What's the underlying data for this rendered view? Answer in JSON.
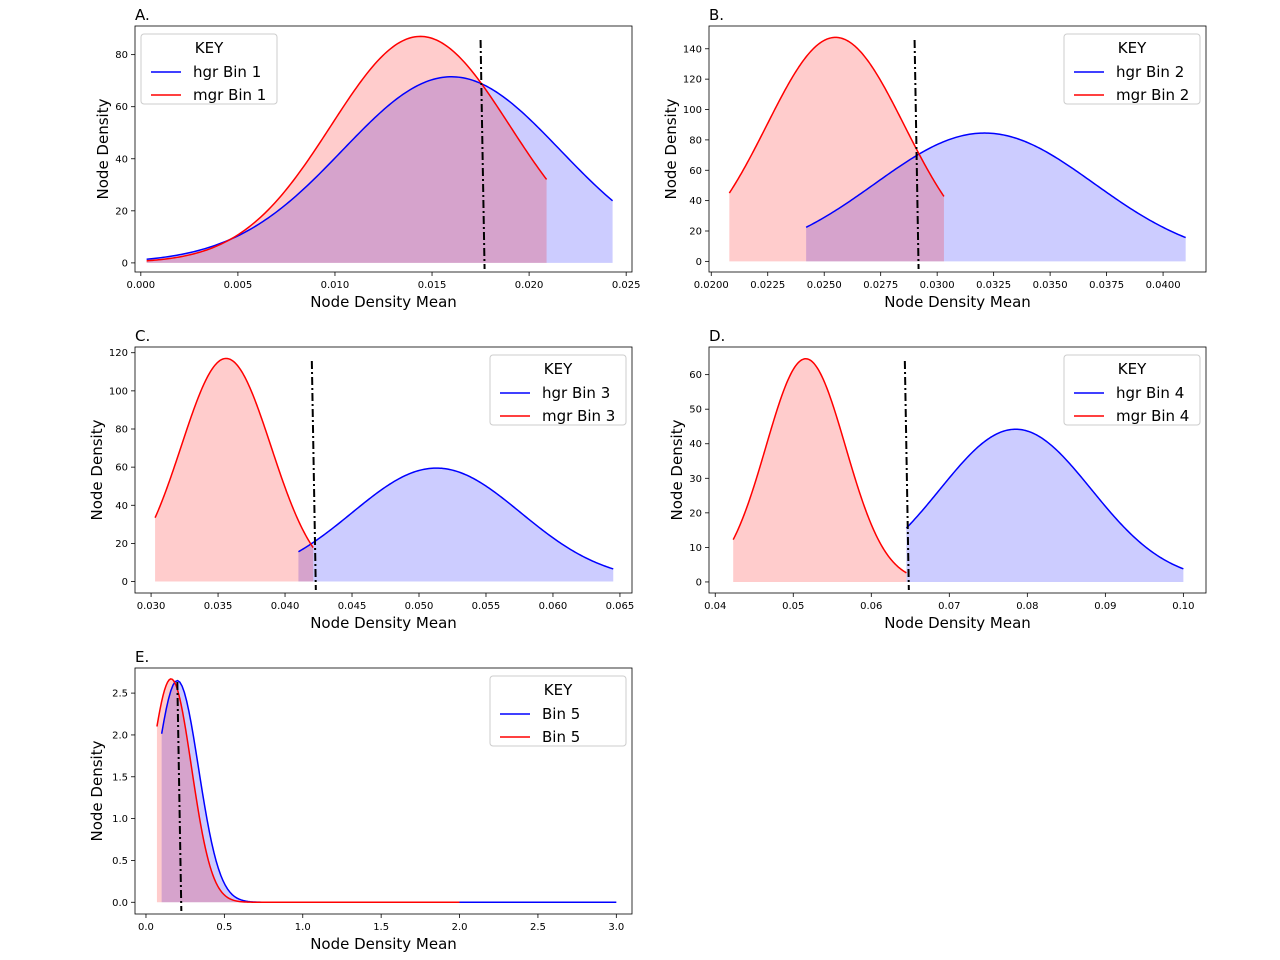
{
  "chart_data": [
    {
      "type": "area",
      "panel_label": "A.",
      "xlabel": "Node Density Mean",
      "ylabel": "Node Density",
      "xlim": [
        -0.0003,
        0.0253
      ],
      "ylim": [
        -3.5,
        91
      ],
      "xticks": [
        0.0,
        0.005,
        0.01,
        0.015,
        0.02,
        0.025
      ],
      "xtick_labels": [
        "0.000",
        "0.005",
        "0.010",
        "0.015",
        "0.020",
        "0.025"
      ],
      "yticks": [
        0,
        20,
        40,
        60,
        80
      ],
      "ytick_labels": [
        "0",
        "20",
        "40",
        "60",
        "80"
      ],
      "threshold_x": 0.0175,
      "legend": {
        "title": "KEY",
        "position": "upper-left"
      },
      "series": [
        {
          "name": "hgr Bin 1",
          "color": "#0000ff",
          "fill": "#0000ff",
          "mean": 0.016,
          "sd": 0.0056,
          "peak": 71.5,
          "xmin": 0.0003,
          "xmax": 0.0243
        },
        {
          "name": "mgr Bin 1",
          "color": "#ff0000",
          "fill": "#ff0000",
          "mean": 0.0144,
          "sd": 0.0046,
          "peak": 87,
          "xmin": 0.0003,
          "xmax": 0.0209
        }
      ]
    },
    {
      "type": "area",
      "panel_label": "B.",
      "xlabel": "Node Density Mean",
      "ylabel": "Node Density",
      "xlim": [
        0.0199,
        0.0419
      ],
      "ylim": [
        -7,
        155
      ],
      "xticks": [
        0.02,
        0.0225,
        0.025,
        0.0275,
        0.03,
        0.0325,
        0.035,
        0.0375,
        0.04
      ],
      "xtick_labels": [
        "0.0200",
        "0.0225",
        "0.0250",
        "0.0275",
        "0.0300",
        "0.0325",
        "0.0350",
        "0.0375",
        "0.0400"
      ],
      "yticks": [
        0,
        20,
        40,
        60,
        80,
        100,
        120,
        140
      ],
      "ytick_labels": [
        "0",
        "20",
        "40",
        "60",
        "80",
        "100",
        "120",
        "140"
      ],
      "threshold_x": 0.029,
      "legend": {
        "title": "KEY",
        "position": "upper-right"
      },
      "series": [
        {
          "name": "hgr Bin 2",
          "color": "#0000ff",
          "fill": "#0000ff",
          "mean": 0.0321,
          "sd": 0.00485,
          "peak": 84.5,
          "xmin": 0.0242,
          "xmax": 0.041
        },
        {
          "name": "mgr Bin 2",
          "color": "#ff0000",
          "fill": "#ff0000",
          "mean": 0.0255,
          "sd": 0.00305,
          "peak": 147.5,
          "xmin": 0.0208,
          "xmax": 0.0303
        }
      ]
    },
    {
      "type": "area",
      "panel_label": "C.",
      "xlabel": "Node Density Mean",
      "ylabel": "Node Density",
      "xlim": [
        0.0288,
        0.0659
      ],
      "ylim": [
        -6,
        123
      ],
      "xticks": [
        0.03,
        0.035,
        0.04,
        0.045,
        0.05,
        0.055,
        0.06,
        0.065
      ],
      "xtick_labels": [
        "0.030",
        "0.035",
        "0.040",
        "0.045",
        "0.050",
        "0.055",
        "0.060",
        "0.065"
      ],
      "yticks": [
        0,
        20,
        40,
        60,
        80,
        100,
        120
      ],
      "ytick_labels": [
        "0",
        "20",
        "40",
        "60",
        "80",
        "100",
        "120"
      ],
      "threshold_x": 0.042,
      "legend": {
        "title": "KEY",
        "position": "upper-right"
      },
      "series": [
        {
          "name": " hgr Bin 3",
          "color": "#0000ff",
          "fill": "#0000ff",
          "mean": 0.0513,
          "sd": 0.0063,
          "peak": 59.5,
          "xmin": 0.041,
          "xmax": 0.0645
        },
        {
          "name": "mgr Bin 3",
          "color": "#ff0000",
          "fill": "#ff0000",
          "mean": 0.0356,
          "sd": 0.00335,
          "peak": 117,
          "xmin": 0.0303,
          "xmax": 0.0421
        }
      ]
    },
    {
      "type": "area",
      "panel_label": "D.",
      "xlabel": "Node Density Mean",
      "ylabel": "Node Density",
      "xlim": [
        0.0392,
        0.1029
      ],
      "ylim": [
        -3.2,
        68
      ],
      "xticks": [
        0.04,
        0.05,
        0.06,
        0.07,
        0.08,
        0.09,
        0.1
      ],
      "xtick_labels": [
        "0.04",
        "0.05",
        "0.06",
        "0.07",
        "0.08",
        "0.09",
        "0.10"
      ],
      "yticks": [
        0,
        10,
        20,
        30,
        40,
        50,
        60
      ],
      "ytick_labels": [
        "0",
        "10",
        "20",
        "30",
        "40",
        "50",
        "60"
      ],
      "threshold_x": 0.0643,
      "legend": {
        "title": "KEY",
        "position": "upper-right"
      },
      "series": [
        {
          "name": "hgr Bin 4",
          "color": "#0000ff",
          "fill": "#0000ff",
          "mean": 0.0785,
          "sd": 0.0097,
          "peak": 44.2,
          "xmin": 0.0645,
          "xmax": 0.1
        },
        {
          "name": "mgr Bin 4",
          "color": "#ff0000",
          "fill": "#ff0000",
          "mean": 0.0516,
          "sd": 0.0051,
          "peak": 64.6,
          "xmin": 0.0423,
          "xmax": 0.0645
        }
      ]
    },
    {
      "type": "area",
      "panel_label": "E.",
      "xlabel": "Node Density Mean",
      "ylabel": "Node Density",
      "xlim": [
        -0.07,
        3.1
      ],
      "ylim": [
        -0.14,
        2.8
      ],
      "xticks": [
        0.0,
        0.5,
        1.0,
        1.5,
        2.0,
        2.5,
        3.0
      ],
      "xtick_labels": [
        "0.0",
        "0.5",
        "1.0",
        "1.5",
        "2.0",
        "2.5",
        "3.0"
      ],
      "yticks": [
        0.0,
        0.5,
        1.0,
        1.5,
        2.0,
        2.5
      ],
      "ytick_labels": [
        "0.0",
        "0.5",
        "1.0",
        "1.5",
        "2.0",
        "2.5"
      ],
      "threshold_x": 0.2,
      "legend": {
        "title": "KEY",
        "position": "upper-right"
      },
      "series": [
        {
          "name": "Bin 5",
          "color": "#0000ff",
          "fill": "#0000ff",
          "mean": 0.2,
          "sd": 0.135,
          "peak": 2.65,
          "xmin": 0.1,
          "xmax": 3.0
        },
        {
          "name": "Bin 5",
          "color": "#ff0000",
          "fill": "#ff0000",
          "mean": 0.16,
          "sd": 0.13,
          "peak": 2.67,
          "xmin": 0.07,
          "xmax": 2.0
        }
      ]
    }
  ]
}
